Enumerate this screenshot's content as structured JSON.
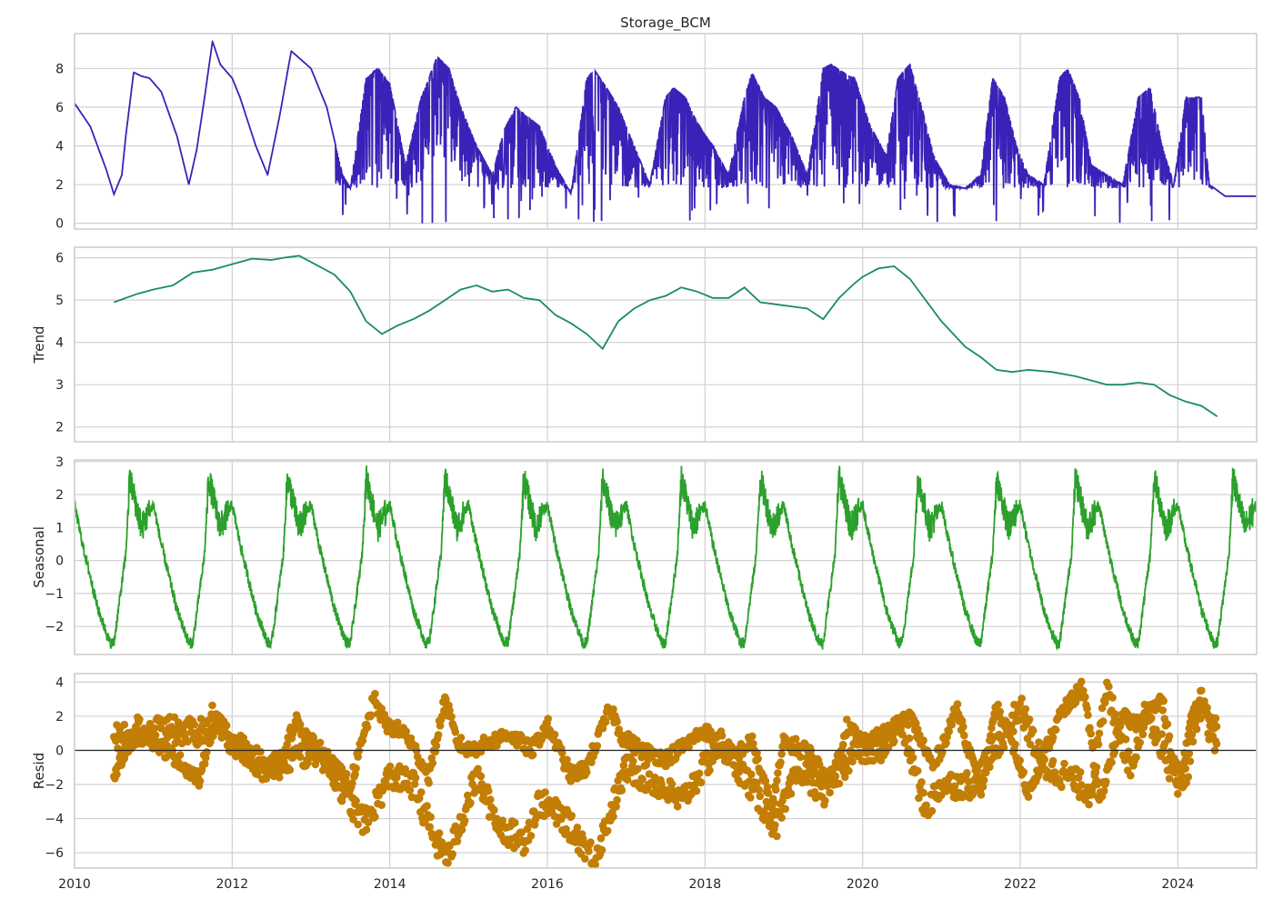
{
  "colors": {
    "observed": "#3a22b8",
    "trend": "#1a8a6a",
    "seasonal": "#2ca02c",
    "resid": "#c27e05",
    "grid": "#d0d0d0",
    "zero_line": "#262626"
  },
  "chart_data": [
    {
      "type": "line",
      "panel": "observed",
      "title": "Storage_BCM",
      "ylabel": "",
      "xlim": [
        2010.0,
        2025.0
      ],
      "ylim": [
        -0.3,
        9.8
      ],
      "yticks": [
        0,
        2,
        4,
        6,
        8
      ],
      "grid": true,
      "series": [
        {
          "x": [
            2010.0,
            2010.2,
            2010.4,
            2010.5,
            2010.6,
            2010.65,
            2010.75,
            2010.85,
            2010.95,
            2011.1,
            2011.3,
            2011.45,
            2011.55,
            2011.65,
            2011.75,
            2011.85,
            2012.0,
            2012.1,
            2012.3,
            2012.45,
            2012.6,
            2012.75,
            2013.0,
            2013.2,
            2013.4,
            2013.5,
            2013.7,
            2013.85,
            2014.0,
            2014.2,
            2014.4,
            2014.6,
            2014.75,
            2014.9,
            2015.1,
            2015.3,
            2015.45,
            2015.6,
            2015.75,
            2015.9,
            2016.1,
            2016.3,
            2016.5,
            2016.6,
            2016.75,
            2016.9,
            2017.1,
            2017.3,
            2017.5,
            2017.6,
            2017.75,
            2017.9,
            2018.1,
            2018.3,
            2018.5,
            2018.6,
            2018.75,
            2018.9,
            2019.1,
            2019.3,
            2019.5,
            2019.6,
            2019.75,
            2019.9,
            2020.1,
            2020.3,
            2020.45,
            2020.6,
            2020.75,
            2020.9,
            2021.1,
            2021.3,
            2021.5,
            2021.65,
            2021.8,
            2021.95,
            2022.1,
            2022.3,
            2022.5,
            2022.6,
            2022.75,
            2022.9,
            2023.1,
            2023.3,
            2023.5,
            2023.65,
            2023.8,
            2023.95,
            2024.1,
            2024.3,
            2024.4,
            2024.6,
            2025.0
          ],
          "y": [
            6.2,
            5.0,
            2.8,
            1.5,
            2.5,
            4.5,
            7.8,
            7.6,
            7.5,
            6.8,
            4.5,
            2.0,
            3.8,
            6.5,
            9.4,
            8.2,
            7.5,
            6.5,
            4.0,
            2.5,
            5.5,
            8.9,
            8.0,
            6.0,
            2.5,
            1.8,
            7.5,
            8.0,
            7.2,
            3.0,
            6.5,
            8.6,
            8.0,
            6.0,
            4.0,
            2.5,
            4.8,
            6.0,
            5.5,
            5.0,
            3.0,
            1.5,
            7.5,
            7.9,
            7.0,
            6.0,
            4.0,
            2.0,
            6.5,
            7.0,
            6.5,
            5.2,
            4.0,
            2.5,
            6.5,
            7.8,
            6.5,
            6.0,
            4.5,
            2.5,
            8.0,
            8.2,
            7.8,
            7.5,
            5.0,
            3.5,
            7.5,
            8.2,
            6.0,
            3.5,
            2.0,
            1.8,
            2.5,
            7.5,
            6.5,
            4.0,
            2.5,
            2.0,
            7.5,
            8.0,
            6.5,
            3.0,
            2.5,
            2.0,
            6.5,
            7.0,
            4.0,
            2.0,
            6.5,
            6.5,
            2.0,
            1.4,
            1.4
          ]
        }
      ]
    },
    {
      "type": "line",
      "panel": "trend",
      "title": "",
      "ylabel": "Trend",
      "xlim": [
        2010.0,
        2025.0
      ],
      "ylim": [
        1.65,
        6.25
      ],
      "yticks": [
        2,
        3,
        4,
        5,
        6
      ],
      "grid": true,
      "series": [
        {
          "x": [
            2010.5,
            2010.8,
            2011.0,
            2011.25,
            2011.5,
            2011.75,
            2012.0,
            2012.25,
            2012.5,
            2012.65,
            2012.85,
            2013.1,
            2013.3,
            2013.5,
            2013.7,
            2013.9,
            2014.1,
            2014.3,
            2014.5,
            2014.7,
            2014.9,
            2015.1,
            2015.3,
            2015.5,
            2015.7,
            2015.9,
            2016.1,
            2016.3,
            2016.5,
            2016.7,
            2016.9,
            2017.1,
            2017.3,
            2017.5,
            2017.7,
            2017.9,
            2018.1,
            2018.3,
            2018.5,
            2018.7,
            2018.9,
            2019.1,
            2019.3,
            2019.5,
            2019.7,
            2019.9,
            2020.0,
            2020.2,
            2020.4,
            2020.6,
            2020.8,
            2021.0,
            2021.3,
            2021.5,
            2021.7,
            2021.9,
            2022.1,
            2022.4,
            2022.7,
            2022.9,
            2023.1,
            2023.3,
            2023.5,
            2023.7,
            2023.9,
            2024.1,
            2024.3,
            2024.5
          ],
          "y": [
            4.95,
            5.15,
            5.25,
            5.35,
            5.65,
            5.72,
            5.85,
            5.98,
            5.95,
            6.0,
            6.05,
            5.8,
            5.6,
            5.2,
            4.5,
            4.2,
            4.4,
            4.55,
            4.75,
            5.0,
            5.25,
            5.35,
            5.2,
            5.25,
            5.05,
            5.0,
            4.65,
            4.45,
            4.2,
            3.85,
            4.5,
            4.8,
            5.0,
            5.1,
            5.3,
            5.2,
            5.05,
            5.05,
            5.3,
            4.95,
            4.9,
            4.85,
            4.8,
            4.55,
            5.05,
            5.4,
            5.55,
            5.75,
            5.8,
            5.5,
            5.0,
            4.5,
            3.9,
            3.65,
            3.35,
            3.3,
            3.35,
            3.3,
            3.2,
            3.1,
            3.0,
            3.0,
            3.05,
            3.0,
            2.75,
            2.6,
            2.5,
            2.25
          ]
        }
      ]
    },
    {
      "type": "line",
      "panel": "seasonal",
      "title": "",
      "ylabel": "Seasonal",
      "xlim": [
        2010.0,
        2025.0
      ],
      "ylim": [
        -2.85,
        3.05
      ],
      "yticks": [
        -2,
        -1,
        0,
        1,
        2,
        3
      ],
      "grid": true,
      "period_years": 1.0,
      "cycle_phase": [
        0.0,
        0.1,
        0.3,
        0.45,
        0.5,
        0.65,
        0.7,
        0.8,
        0.85,
        1.0
      ],
      "cycle_values": [
        1.7,
        0.5,
        -1.5,
        -2.5,
        -2.5,
        0.2,
        2.5,
        1.5,
        1.0,
        1.7
      ]
    },
    {
      "type": "scatter",
      "panel": "resid",
      "title": "",
      "ylabel": "Resid",
      "xlabel": "",
      "xlim": [
        2010.0,
        2025.0
      ],
      "ylim": [
        -6.9,
        4.5
      ],
      "yticks": [
        -6,
        -4,
        -2,
        0,
        2,
        4
      ],
      "xticks": [
        2010,
        2012,
        2014,
        2016,
        2018,
        2020,
        2022,
        2024
      ],
      "grid": true,
      "zero_line": true,
      "series": [
        {
          "x": [
            2010.5,
            2010.8,
            2011.0,
            2011.3,
            2011.6,
            2011.75,
            2012.0,
            2012.3,
            2012.6,
            2012.8,
            2013.0,
            2013.3,
            2013.5,
            2013.8,
            2013.95,
            2014.2,
            2014.5,
            2014.7,
            2014.85,
            2015.0,
            2015.3,
            2015.5,
            2015.8,
            2016.0,
            2016.3,
            2016.5,
            2016.8,
            2016.95,
            2017.2,
            2017.5,
            2017.8,
            2018.0,
            2018.3,
            2018.6,
            2018.85,
            2019.0,
            2019.3,
            2019.6,
            2019.8,
            2020.0,
            2020.3,
            2020.6,
            2020.9,
            2021.2,
            2021.5,
            2021.7,
            2021.9,
            2022.1,
            2022.5,
            2022.8,
            2023.0,
            2023.3,
            2023.5,
            2023.8,
            2024.0,
            2024.2,
            2024.5
          ],
          "y": [
            -1.5,
            1.5,
            0.5,
            -0.5,
            -1.8,
            2.3,
            0.5,
            -0.8,
            -1.2,
            1.8,
            0.5,
            -1.0,
            -2.0,
            3.0,
            1.5,
            1.0,
            -1.5,
            3.0,
            0.5,
            0.0,
            0.5,
            1.0,
            0.0,
            1.5,
            -1.5,
            -1.0,
            2.5,
            0.8,
            0.0,
            -0.5,
            0.5,
            1.2,
            -0.5,
            0.5,
            -3.5,
            0.5,
            0.0,
            -2.0,
            1.5,
            0.5,
            1.0,
            2.0,
            -1.0,
            2.5,
            -2.5,
            2.5,
            0.5,
            -2.5,
            2.0,
            3.8,
            -3.0,
            2.0,
            1.5,
            3.0,
            -2.5,
            2.5,
            1.8
          ]
        },
        {
          "x": [
            2010.6,
            2011.1,
            2011.9,
            2012.4,
            2013.1,
            2013.6,
            2013.7,
            2014.0,
            2014.3,
            2014.6,
            2014.75,
            2015.1,
            2015.4,
            2015.7,
            2015.9,
            2016.2,
            2016.6,
            2016.7,
            2017.0,
            2017.4,
            2017.7,
            2018.2,
            2018.5,
            2018.9,
            2019.2,
            2019.5,
            2019.9,
            2020.2,
            2020.5,
            2020.8,
            2021.0,
            2021.4,
            2021.8,
            2022.0,
            2022.3,
            2022.6,
            2022.9,
            2023.1,
            2023.4,
            2023.6,
            2023.9,
            2024.1,
            2024.3,
            2024.45
          ],
          "y": [
            0.8,
            1.2,
            1.0,
            -1.0,
            0.0,
            -3.8,
            -4.2,
            -1.5,
            -2.0,
            -5.5,
            -6.2,
            -1.5,
            -4.5,
            -5.3,
            -3.0,
            -4.0,
            -6.3,
            -5.0,
            -1.0,
            -2.0,
            -3.0,
            0.5,
            -1.5,
            -4.5,
            -1.0,
            -2.5,
            0.0,
            0.0,
            1.5,
            -3.5,
            -2.0,
            -2.0,
            1.0,
            2.5,
            -1.0,
            -1.5,
            -2.5,
            3.5,
            -1.0,
            2.5,
            -1.0,
            -1.5,
            3.0,
            0.5
          ]
        }
      ]
    }
  ]
}
